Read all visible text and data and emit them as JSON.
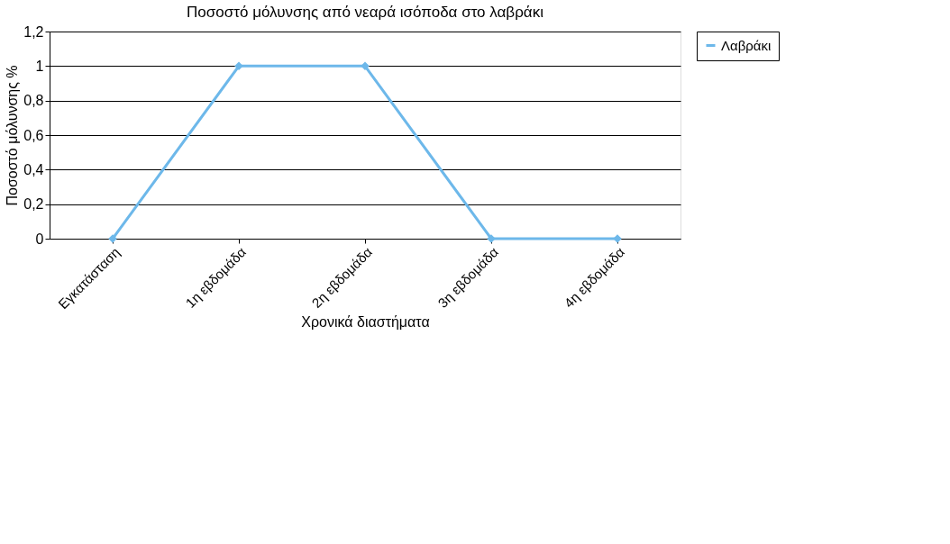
{
  "chart_data": {
    "type": "line",
    "title": "Ποσοστό μόλυνσης από νεαρά ισόποδα στο λαβράκι",
    "xlabel": "Χρονικά διαστήματα",
    "ylabel": "Ποσοστό μόλυνσης %",
    "categories": [
      "Εγκατάσταση",
      "1η εβδομάδα",
      "2η εβδομάδα",
      "3η εβδομάδα",
      "4η εβδομάδα"
    ],
    "series": [
      {
        "name": "Λαβράκι",
        "color": "#6db8ea",
        "values": [
          0,
          1,
          1,
          0,
          0
        ]
      }
    ],
    "ylim": [
      0,
      1.2
    ],
    "yticks": [
      0,
      {
        "value": 0.2,
        "label": "0,2"
      },
      {
        "value": 0.4,
        "label": "0,4"
      },
      {
        "value": 0.6,
        "label": "0,6"
      },
      {
        "value": 0.8,
        "label": "0,8"
      },
      1,
      {
        "value": 1.2,
        "label": "1,2"
      }
    ],
    "grid": "y",
    "legend": "right",
    "marker": "diamond",
    "line_style": "solid"
  }
}
